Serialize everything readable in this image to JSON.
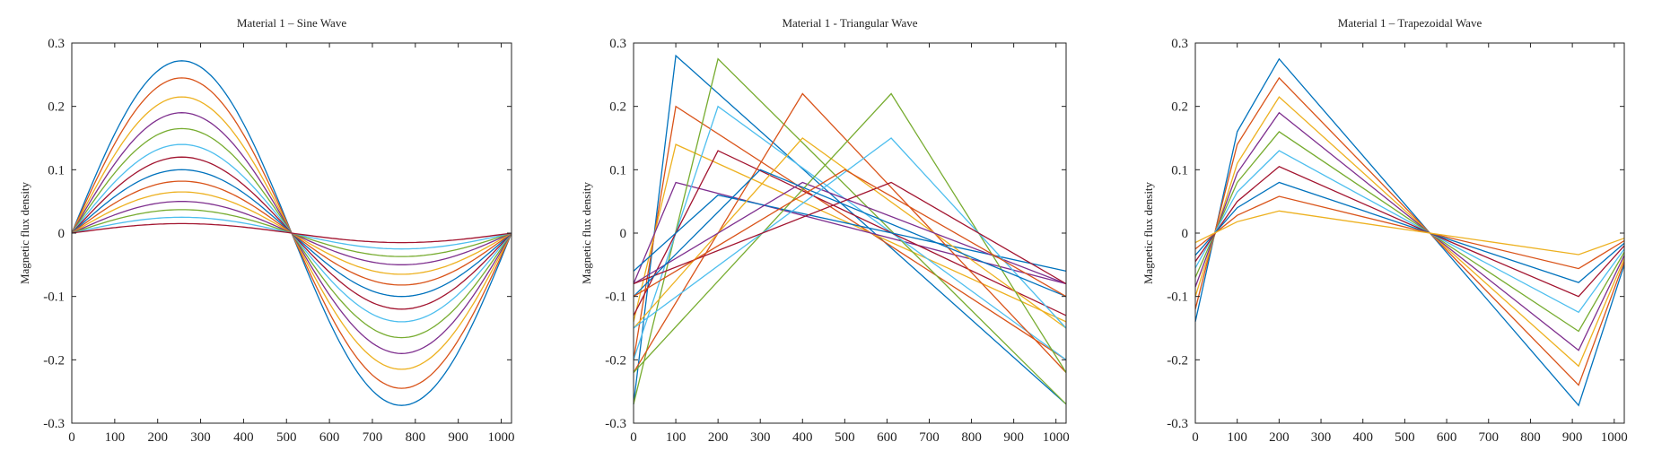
{
  "palette": [
    "#0072bd",
    "#d95319",
    "#edb120",
    "#7e2f8e",
    "#77ac30",
    "#4dbeee",
    "#a2142f"
  ],
  "figure": {
    "panel_count": 3
  },
  "chart_data": [
    {
      "type": "line",
      "waveform": "sine",
      "title": "Material 1 – Sine Wave",
      "xlabel": "",
      "ylabel": "Magnetic flux density",
      "xlim": [
        0,
        1024
      ],
      "ylim": [
        -0.3,
        0.3
      ],
      "xticks": [
        0,
        100,
        200,
        300,
        400,
        500,
        600,
        700,
        800,
        900,
        1000
      ],
      "yticks": [
        -0.3,
        -0.2,
        -0.1,
        0,
        0.1,
        0.2,
        0.3
      ],
      "ytick_labels": [
        "-0.3",
        "-0.2",
        "-0.1",
        "0",
        "0.1",
        "0.2",
        "0.3"
      ],
      "grid": false,
      "series": [
        {
          "x": [
            0,
            256,
            512,
            768,
            1024
          ],
          "y": [
            0,
            0.272,
            0,
            -0.272,
            0
          ]
        },
        {
          "x": [
            0,
            256,
            512,
            768,
            1024
          ],
          "y": [
            0,
            0.245,
            0,
            -0.245,
            0
          ]
        },
        {
          "x": [
            0,
            256,
            512,
            768,
            1024
          ],
          "y": [
            0,
            0.215,
            0,
            -0.215,
            0
          ]
        },
        {
          "x": [
            0,
            256,
            512,
            768,
            1024
          ],
          "y": [
            0,
            0.19,
            0,
            -0.19,
            0
          ]
        },
        {
          "x": [
            0,
            256,
            512,
            768,
            1024
          ],
          "y": [
            0,
            0.165,
            0,
            -0.165,
            0
          ]
        },
        {
          "x": [
            0,
            256,
            512,
            768,
            1024
          ],
          "y": [
            0,
            0.14,
            0,
            -0.14,
            0
          ]
        },
        {
          "x": [
            0,
            256,
            512,
            768,
            1024
          ],
          "y": [
            0,
            0.12,
            0,
            -0.12,
            0
          ]
        },
        {
          "x": [
            0,
            256,
            512,
            768,
            1024
          ],
          "y": [
            0,
            0.1,
            0,
            -0.1,
            0
          ]
        },
        {
          "x": [
            0,
            256,
            512,
            768,
            1024
          ],
          "y": [
            0,
            0.082,
            0,
            -0.082,
            0
          ]
        },
        {
          "x": [
            0,
            256,
            512,
            768,
            1024
          ],
          "y": [
            0,
            0.065,
            0,
            -0.065,
            0
          ]
        },
        {
          "x": [
            0,
            256,
            512,
            768,
            1024
          ],
          "y": [
            0,
            0.05,
            0,
            -0.05,
            0
          ]
        },
        {
          "x": [
            0,
            256,
            512,
            768,
            1024
          ],
          "y": [
            0,
            0.037,
            0,
            -0.037,
            0
          ]
        },
        {
          "x": [
            0,
            256,
            512,
            768,
            1024
          ],
          "y": [
            0,
            0.025,
            0,
            -0.025,
            0
          ]
        },
        {
          "x": [
            0,
            256,
            512,
            768,
            1024
          ],
          "y": [
            0,
            0.015,
            0,
            -0.015,
            0
          ]
        }
      ]
    },
    {
      "type": "line",
      "waveform": "triangular",
      "title": "Material 1 - Triangular Wave",
      "xlabel": "",
      "ylabel": "Magnetic flux density",
      "xlim": [
        0,
        1024
      ],
      "ylim": [
        -0.3,
        0.3
      ],
      "xticks": [
        0,
        100,
        200,
        300,
        400,
        500,
        600,
        700,
        800,
        900,
        1000
      ],
      "yticks": [
        -0.3,
        -0.2,
        -0.1,
        0,
        0.1,
        0.2,
        0.3
      ],
      "ytick_labels": [
        "-0.3",
        "-0.2",
        "-0.1",
        "0",
        "0.1",
        "0.2",
        "0.3"
      ],
      "grid": false,
      "series": [
        {
          "x": [
            0,
            100,
            1024
          ],
          "y": [
            -0.27,
            0.28,
            -0.27
          ]
        },
        {
          "x": [
            0,
            100,
            1024
          ],
          "y": [
            -0.2,
            0.2,
            -0.2
          ]
        },
        {
          "x": [
            0,
            100,
            1024
          ],
          "y": [
            -0.14,
            0.14,
            -0.14
          ]
        },
        {
          "x": [
            0,
            100,
            1024
          ],
          "y": [
            -0.08,
            0.08,
            -0.08
          ]
        },
        {
          "x": [
            0,
            200,
            1024
          ],
          "y": [
            -0.27,
            0.275,
            -0.27
          ]
        },
        {
          "x": [
            0,
            200,
            1024
          ],
          "y": [
            -0.2,
            0.2,
            -0.2
          ]
        },
        {
          "x": [
            0,
            200,
            1024
          ],
          "y": [
            -0.13,
            0.13,
            -0.13
          ]
        },
        {
          "x": [
            0,
            200,
            1024
          ],
          "y": [
            -0.06,
            0.06,
            -0.06
          ]
        },
        {
          "x": [
            0,
            400,
            1024
          ],
          "y": [
            -0.22,
            0.22,
            -0.22
          ]
        },
        {
          "x": [
            0,
            400,
            1024
          ],
          "y": [
            -0.15,
            0.15,
            -0.15
          ]
        },
        {
          "x": [
            0,
            400,
            1024
          ],
          "y": [
            -0.08,
            0.08,
            -0.08
          ]
        },
        {
          "x": [
            0,
            610,
            1024
          ],
          "y": [
            -0.22,
            0.22,
            -0.22
          ]
        },
        {
          "x": [
            0,
            610,
            1024
          ],
          "y": [
            -0.15,
            0.15,
            -0.15
          ]
        },
        {
          "x": [
            0,
            610,
            1024
          ],
          "y": [
            -0.08,
            0.08,
            -0.08
          ]
        },
        {
          "x": [
            0,
            300,
            1024
          ],
          "y": [
            -0.1,
            0.1,
            -0.1
          ]
        },
        {
          "x": [
            0,
            500,
            1024
          ],
          "y": [
            -0.1,
            0.1,
            -0.1
          ]
        }
      ]
    },
    {
      "type": "line",
      "waveform": "trapezoidal",
      "title": "Material 1 – Trapezoidal Wave",
      "xlabel": "",
      "ylabel": "Magnetic flux density",
      "xlim": [
        0,
        1024
      ],
      "ylim": [
        -0.3,
        0.3
      ],
      "xticks": [
        0,
        100,
        200,
        300,
        400,
        500,
        600,
        700,
        800,
        900,
        1000
      ],
      "yticks": [
        -0.3,
        -0.2,
        -0.1,
        0,
        0.1,
        0.2,
        0.3
      ],
      "ytick_labels": [
        "-0.3",
        "-0.2",
        "-0.1",
        "0",
        "0.1",
        "0.2",
        "0.3"
      ],
      "grid": false,
      "series": [
        {
          "x": [
            0,
            100,
            200,
            560,
            915,
            1024
          ],
          "y": [
            -0.14,
            0.16,
            0.275,
            0,
            -0.272,
            -0.05
          ]
        },
        {
          "x": [
            0,
            100,
            200,
            560,
            915,
            1024
          ],
          "y": [
            -0.12,
            0.14,
            0.245,
            0,
            -0.24,
            -0.045
          ]
        },
        {
          "x": [
            0,
            100,
            200,
            560,
            915,
            1024
          ],
          "y": [
            -0.1,
            0.11,
            0.215,
            0,
            -0.21,
            -0.04
          ]
        },
        {
          "x": [
            0,
            100,
            200,
            560,
            915,
            1024
          ],
          "y": [
            -0.085,
            0.095,
            0.19,
            0,
            -0.185,
            -0.035
          ]
        },
        {
          "x": [
            0,
            100,
            200,
            560,
            915,
            1024
          ],
          "y": [
            -0.07,
            0.08,
            0.16,
            0,
            -0.155,
            -0.03
          ]
        },
        {
          "x": [
            0,
            100,
            200,
            560,
            915,
            1024
          ],
          "y": [
            -0.055,
            0.065,
            0.13,
            0,
            -0.125,
            -0.025
          ]
        },
        {
          "x": [
            0,
            100,
            200,
            560,
            915,
            1024
          ],
          "y": [
            -0.045,
            0.05,
            0.105,
            0,
            -0.1,
            -0.02
          ]
        },
        {
          "x": [
            0,
            100,
            200,
            560,
            915,
            1024
          ],
          "y": [
            -0.035,
            0.04,
            0.08,
            0,
            -0.078,
            -0.016
          ]
        },
        {
          "x": [
            0,
            100,
            200,
            560,
            915,
            1024
          ],
          "y": [
            -0.025,
            0.028,
            0.058,
            0,
            -0.056,
            -0.012
          ]
        },
        {
          "x": [
            0,
            100,
            200,
            560,
            915,
            1024
          ],
          "y": [
            -0.015,
            0.018,
            0.035,
            0,
            -0.034,
            -0.008
          ]
        }
      ]
    }
  ]
}
